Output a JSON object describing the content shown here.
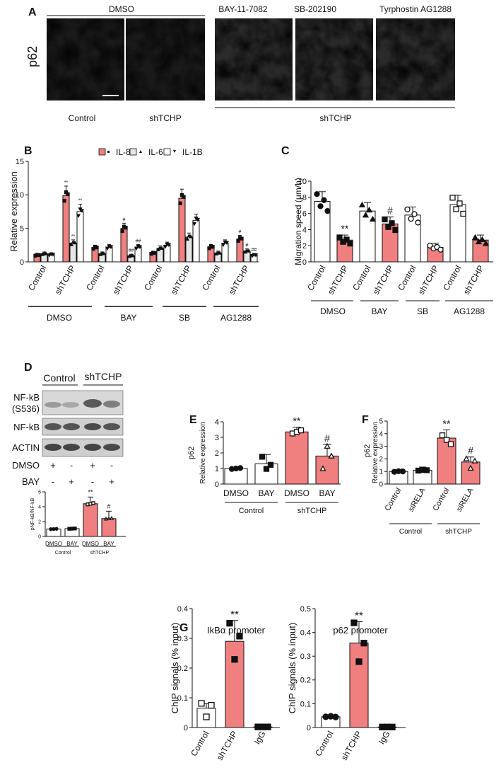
{
  "colors": {
    "red": "#f08080",
    "light": "#e6e6e6",
    "white": "#ffffff",
    "black": "#111111"
  },
  "panelA": {
    "letter": "A",
    "ylabel": "p62",
    "dmso_label": "DMSO",
    "bay_label": "BAY-11-7082",
    "sb_label": "SB-202190",
    "ag_label": "Tyrphostin AG1288",
    "control_label": "Control",
    "shtchp_label": "shTCHP",
    "shtchp_group_label": "shTCHP"
  },
  "panelB": {
    "letter": "B",
    "legend": [
      "IL-8",
      "IL-6",
      "IL-1B"
    ],
    "groups": [
      "DMSO",
      "BAY",
      "SB",
      "AG1288"
    ],
    "conditions": [
      "Control",
      "shTCHP"
    ]
  },
  "panelC": {
    "letter": "C",
    "groups": [
      "DMSO",
      "BAY",
      "SB",
      "AG1288"
    ],
    "conditions": [
      "Control",
      "shTCHP"
    ]
  },
  "panelD": {
    "letter": "D",
    "control_label": "Control",
    "shtchp_label": "shTCHP",
    "blot_labels": [
      "NF-kB",
      "(S536)",
      "NF-kB",
      "ACTIN"
    ],
    "row_dmso": "DMSO",
    "row_bay": "BAY",
    "signs_dmso": [
      "+",
      "-",
      "+",
      "-"
    ],
    "signs_bay": [
      "-",
      "+",
      "-",
      "+"
    ]
  },
  "panelE": {
    "letter": "E"
  },
  "panelF": {
    "letter": "F"
  },
  "panelG": {
    "letter": "G"
  },
  "chart_data": [
    {
      "id": "B",
      "type": "bar",
      "ylabel": "Relative expression",
      "ylim": [
        0,
        15
      ],
      "yticks": [
        0,
        5,
        10,
        15
      ],
      "categories": [
        "Control",
        "shTCHP",
        "Control",
        "shTCHP",
        "Control",
        "shTCHP",
        "Control",
        "shTCHP"
      ],
      "series": [
        {
          "name": "IL-8",
          "values": [
            1.0,
            9.9,
            2.1,
            5.0,
            1.3,
            9.5,
            2.2,
            3.4
          ],
          "annot": [
            "",
            "**",
            "",
            "#",
            "",
            "",
            "",
            "#"
          ]
        },
        {
          "name": "IL-6",
          "values": [
            1.2,
            2.8,
            1.2,
            0.9,
            2.0,
            3.7,
            1.3,
            1.6
          ],
          "annot": [
            "",
            "**",
            "",
            "##",
            "",
            "",
            "",
            "#"
          ]
        },
        {
          "name": "IL-1B",
          "values": [
            1.1,
            7.5,
            2.2,
            2.2,
            2.5,
            6.2,
            2.8,
            1.0
          ],
          "annot": [
            "",
            "**",
            "",
            "##",
            "",
            "",
            "",
            "##"
          ]
        }
      ]
    },
    {
      "id": "C",
      "type": "bar",
      "ylabel": "Migration speed (μm/h)",
      "ylim": [
        0,
        10
      ],
      "yticks": [
        0,
        2,
        4,
        6,
        8,
        10
      ],
      "categories": [
        "Control",
        "shTCHP",
        "Control",
        "shTCHP",
        "Control",
        "shTCHP",
        "Control",
        "shTCHP"
      ],
      "values": [
        7.5,
        2.7,
        6.3,
        4.7,
        5.8,
        1.8,
        7.1,
        2.7
      ],
      "annot": [
        "",
        "**",
        "",
        "#",
        "",
        "",
        "",
        ""
      ]
    },
    {
      "id": "D",
      "type": "bar",
      "ylabel": "pNF-kB/NF-kB",
      "ylim": [
        0,
        6
      ],
      "yticks": [
        0,
        2,
        4,
        6
      ],
      "categories": [
        "DMSO",
        "BAY",
        "DMSO",
        "BAY"
      ],
      "groups": [
        "Control",
        "shTCHP"
      ],
      "values": [
        1.0,
        1.05,
        4.4,
        2.4
      ],
      "annot": [
        "",
        "",
        "**",
        "#"
      ]
    },
    {
      "id": "E",
      "type": "bar",
      "title": "p62",
      "ylabel": "Relative expression",
      "ylim": [
        0,
        4
      ],
      "yticks": [
        0,
        1,
        2,
        3,
        4
      ],
      "categories": [
        "DMSO",
        "BAY",
        "DMSO",
        "BAY"
      ],
      "groups": [
        "Control",
        "shTCHP"
      ],
      "values": [
        1.0,
        1.3,
        3.35,
        1.8
      ],
      "annot": [
        "",
        "",
        "**",
        "#"
      ]
    },
    {
      "id": "F",
      "type": "bar",
      "title": "p62",
      "ylabel": "Relative expression",
      "ylim": [
        0,
        5
      ],
      "yticks": [
        0,
        1,
        2,
        3,
        4,
        5
      ],
      "categories": [
        "Control",
        "siRELA",
        "Control",
        "siRELA"
      ],
      "groups": [
        "Control",
        "shTCHP"
      ],
      "values": [
        1.0,
        1.1,
        3.65,
        1.75
      ],
      "annot": [
        "",
        "",
        "**",
        "#"
      ]
    },
    {
      "id": "G1",
      "type": "bar",
      "title": "IkBα promoter",
      "ylabel": "ChIP signals (% input)",
      "ylim": [
        0,
        0.4
      ],
      "yticks": [
        0.0,
        0.1,
        0.2,
        0.3,
        0.4
      ],
      "categories": [
        "Control",
        "shTCHP",
        "IgG"
      ],
      "values": [
        0.065,
        0.29,
        0.002
      ],
      "annot": [
        "",
        "**",
        ""
      ]
    },
    {
      "id": "G2",
      "type": "bar",
      "title": "p62 promoter",
      "ylabel": "ChIP signals (% input)",
      "ylim": [
        0,
        0.5
      ],
      "yticks": [
        0.0,
        0.1,
        0.2,
        0.3,
        0.4,
        0.5
      ],
      "categories": [
        "Control",
        "shTCHP",
        "IgG"
      ],
      "values": [
        0.045,
        0.355,
        0.002
      ],
      "annot": [
        "",
        "**",
        ""
      ]
    }
  ]
}
